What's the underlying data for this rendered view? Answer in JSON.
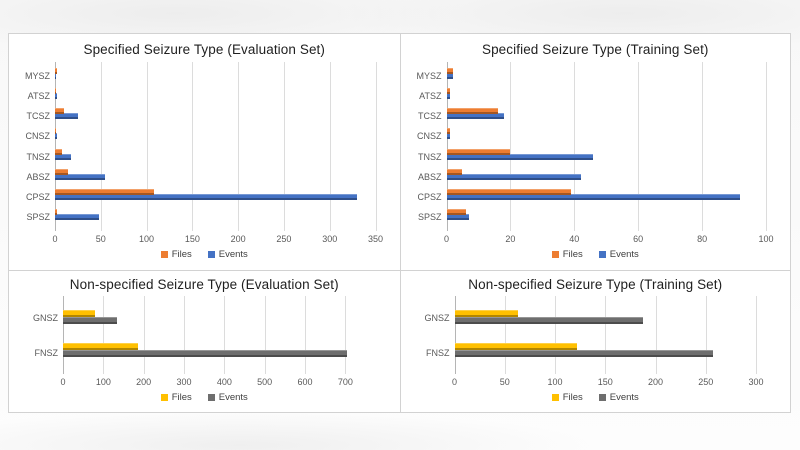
{
  "chart_data": [
    {
      "type": "bar",
      "orientation": "horizontal",
      "title": "Specified Seizure Type (Evaluation Set)",
      "categories": [
        "MYSZ",
        "ATSZ",
        "TCSZ",
        "CNSZ",
        "TNSZ",
        "ABSZ",
        "CPSZ",
        "SPSZ"
      ],
      "series": [
        {
          "name": "Files",
          "color": "#ED7D31",
          "values": [
            2,
            1,
            10,
            1,
            8,
            14,
            108,
            2
          ]
        },
        {
          "name": "Events",
          "color": "#4472C4",
          "values": [
            1,
            2,
            25,
            2,
            17,
            55,
            330,
            48
          ]
        }
      ],
      "xticks": [
        0,
        50,
        100,
        150,
        200,
        250,
        300,
        350
      ],
      "axis_max": 350,
      "grid": true,
      "legend_position": "bottom"
    },
    {
      "type": "bar",
      "orientation": "horizontal",
      "title": "Specified Seizure Type (Training Set)",
      "categories": [
        "MYSZ",
        "ATSZ",
        "TCSZ",
        "CNSZ",
        "TNSZ",
        "ABSZ",
        "CPSZ",
        "SPSZ"
      ],
      "series": [
        {
          "name": "Files",
          "color": "#ED7D31",
          "values": [
            2,
            1,
            16,
            1,
            20,
            5,
            39,
            6
          ]
        },
        {
          "name": "Events",
          "color": "#4472C4",
          "values": [
            2,
            1,
            18,
            1,
            46,
            42,
            92,
            7
          ]
        }
      ],
      "xticks": [
        0,
        20,
        40,
        60,
        80,
        100
      ],
      "axis_max": 100,
      "grid": true,
      "legend_position": "bottom"
    },
    {
      "type": "bar",
      "orientation": "horizontal",
      "title": "Non-specified Seizure Type (Evaluation Set)",
      "categories": [
        "GNSZ",
        "FNSZ"
      ],
      "series": [
        {
          "name": "Files",
          "color": "#FFC000",
          "values": [
            80,
            185
          ]
        },
        {
          "name": "Events",
          "color": "#6E6E6E",
          "values": [
            135,
            705
          ]
        }
      ],
      "xticks": [
        0,
        100,
        200,
        300,
        400,
        500,
        600,
        700
      ],
      "axis_max": 750,
      "grid": true,
      "legend_position": "bottom"
    },
    {
      "type": "bar",
      "orientation": "horizontal",
      "title": "Non-specified Seizure Type (Training Set)",
      "categories": [
        "GNSZ",
        "FNSZ"
      ],
      "series": [
        {
          "name": "Files",
          "color": "#FFC000",
          "values": [
            63,
            122
          ]
        },
        {
          "name": "Events",
          "color": "#6E6E6E",
          "values": [
            188,
            257
          ]
        }
      ],
      "xticks": [
        0,
        50,
        100,
        150,
        200,
        250,
        300
      ],
      "axis_max": 300,
      "grid": true,
      "legend_position": "bottom"
    }
  ]
}
